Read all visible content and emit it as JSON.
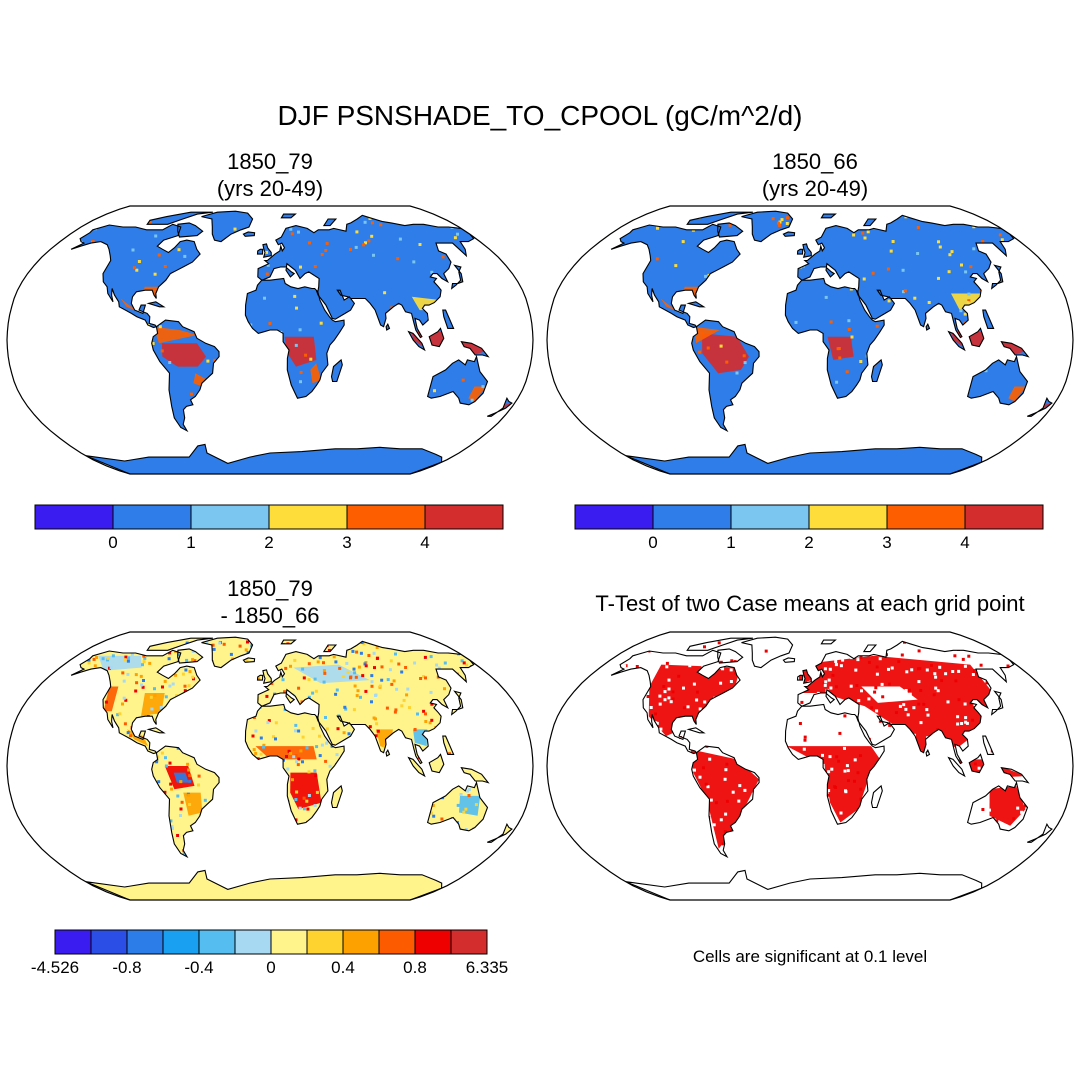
{
  "title": "DJF PSNSHADE_TO_CPOOL (gC/m^2/d)",
  "panels": [
    {
      "title_line1": "1850_79",
      "title_line2": "(yrs 20-49)"
    },
    {
      "title_line1": "1850_66",
      "title_line2": "(yrs 20-49)"
    },
    {
      "title_line1": "1850_79",
      "title_line2": "- 1850_66"
    },
    {
      "title_line1": "T-Test of two Case means at each grid point"
    }
  ],
  "significance_note": "Cells are significant at 0.1 level",
  "colors": {
    "ocean": "#ffffff",
    "coast": "#000000",
    "abs_base": "#2e7de8",
    "diff_base": "#fff48c",
    "ttest_red": "#ee0000"
  },
  "chart_data": [
    {
      "type": "heatmap",
      "panel": "1850_79 (yrs 20-49)",
      "projection": "robinson",
      "colorbar": {
        "levels": [
          "0",
          "1",
          "2",
          "3",
          "4"
        ],
        "colors": [
          "#3a1cf0",
          "#2e7de8",
          "#7ac6f0",
          "#fedc39",
          "#fd5f00",
          "#d42d2d"
        ]
      }
    },
    {
      "type": "heatmap",
      "panel": "1850_66 (yrs 20-49)",
      "projection": "robinson",
      "colorbar": {
        "levels": [
          "0",
          "1",
          "2",
          "3",
          "4"
        ],
        "colors": [
          "#3a1cf0",
          "#2e7de8",
          "#7ac6f0",
          "#fedc39",
          "#fd5f00",
          "#d42d2d"
        ]
      }
    },
    {
      "type": "heatmap",
      "panel": "1850_79 - 1850_66",
      "projection": "robinson",
      "colorbar": {
        "labels": [
          "-4.526",
          "-0.8",
          "-0.4",
          "0",
          "0.4",
          "0.8",
          "6.335"
        ],
        "colors": [
          "#3a1cf0",
          "#2b4fe6",
          "#2c7de7",
          "#1aa0f0",
          "#55bdf0",
          "#a8d9f3",
          "#fff48c",
          "#fed330",
          "#fda100",
          "#fd5b00",
          "#ef0000",
          "#d42d2d"
        ]
      }
    },
    {
      "type": "heatmap",
      "panel": "T-Test of two Case means at each grid point",
      "projection": "robinson",
      "note": "Cells are significant at 0.1 level"
    }
  ]
}
